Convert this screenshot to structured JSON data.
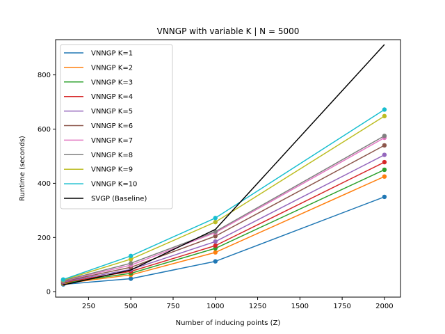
{
  "chart_data": {
    "type": "line",
    "title": "VNNGP with variable K | N = 5000",
    "xlabel": "Number of inducing points (Z)",
    "ylabel": "Runtime (seconds)",
    "xlim": [
      55,
      2095
    ],
    "ylim": [
      -20,
      930
    ],
    "x_ticks": [
      250,
      500,
      750,
      1000,
      1250,
      1500,
      1750,
      2000
    ],
    "y_ticks": [
      0,
      200,
      400,
      600,
      800
    ],
    "grid": false,
    "legend_position": "upper-left",
    "x": [
      100,
      500,
      1000,
      2000
    ],
    "series": [
      {
        "name": "VNNGP K=1",
        "color": "#1f77b4",
        "markers": true,
        "values": [
          27,
          48,
          112,
          350
        ]
      },
      {
        "name": "VNNGP K=2",
        "color": "#ff7f0e",
        "markers": true,
        "values": [
          30,
          62,
          145,
          425
        ]
      },
      {
        "name": "VNNGP K=3",
        "color": "#2ca02c",
        "markers": true,
        "values": [
          32,
          68,
          160,
          450
        ]
      },
      {
        "name": "VNNGP K=4",
        "color": "#d62728",
        "markers": true,
        "values": [
          34,
          75,
          170,
          478
        ]
      },
      {
        "name": "VNNGP K=5",
        "color": "#9467bd",
        "markers": true,
        "values": [
          36,
          82,
          185,
          505
        ]
      },
      {
        "name": "VNNGP K=6",
        "color": "#8c564b",
        "markers": true,
        "values": [
          38,
          90,
          205,
          540
        ]
      },
      {
        "name": "VNNGP K=7",
        "color": "#e377c2",
        "markers": true,
        "values": [
          40,
          98,
          218,
          568
        ]
      },
      {
        "name": "VNNGP K=8",
        "color": "#7f7f7f",
        "markers": true,
        "values": [
          41,
          105,
          222,
          575
        ]
      },
      {
        "name": "VNNGP K=9",
        "color": "#bcbd22",
        "markers": true,
        "values": [
          43,
          120,
          257,
          648
        ]
      },
      {
        "name": "VNNGP K=10",
        "color": "#17becf",
        "markers": true,
        "values": [
          45,
          132,
          272,
          672
        ]
      },
      {
        "name": "SVGP (Baseline)",
        "color": "#000000",
        "markers": false,
        "values": [
          25,
          80,
          230,
          912
        ]
      }
    ]
  }
}
